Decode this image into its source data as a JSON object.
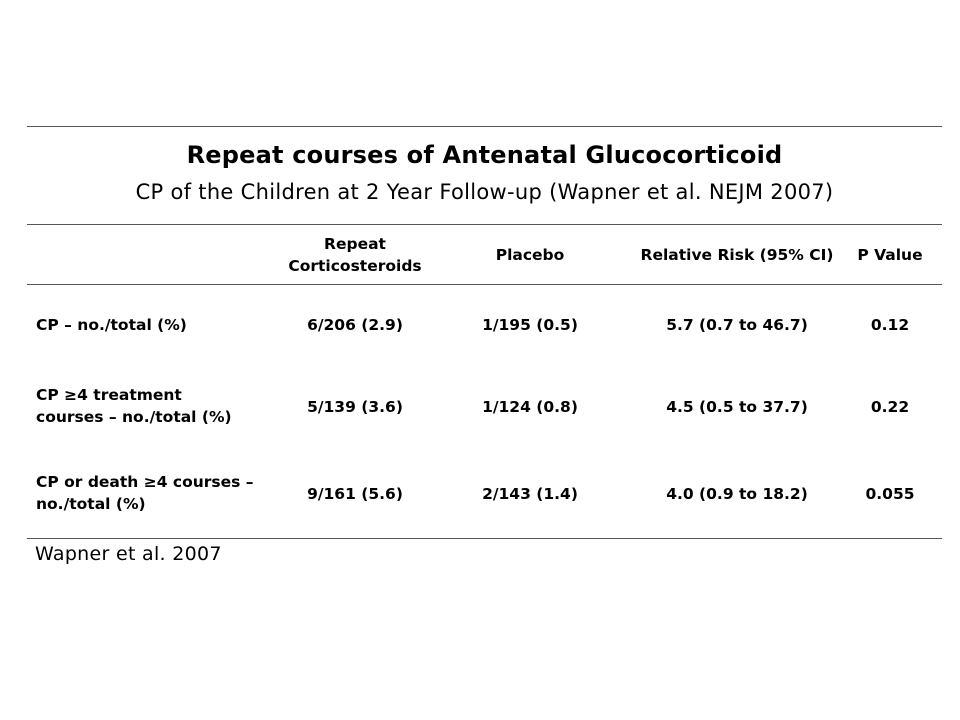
{
  "slide": {
    "title": "Repeat courses of Antenatal Glucocorticoid",
    "subtitle": "CP of the Children at 2 Year Follow-up (Wapner et al. NEJM 2007)",
    "source": "Wapner et al. 2007"
  },
  "table": {
    "headers": [
      "",
      "Repeat Corticosteroids",
      "Placebo",
      "Relative Risk (95% CI)",
      "P Value"
    ],
    "rows": [
      {
        "label": "CP – no./total (%)",
        "repeat": "6/206 (2.9)",
        "placebo": "1/195 (0.5)",
        "rr": "5.7 (0.7 to 46.7)",
        "p": "0.12"
      },
      {
        "label": "CP ≥4 treatment courses – no./total (%)",
        "repeat": "5/139 (3.6)",
        "placebo": "1/124 (0.8)",
        "rr": "4.5 (0.5 to 37.7)",
        "p": "0.22"
      },
      {
        "label": "CP or death ≥4 courses – no./total (%)",
        "repeat": "9/161 (5.6)",
        "placebo": "2/143 (1.4)",
        "rr": "4.0 (0.9 to 18.2)",
        "p": "0.055"
      }
    ]
  }
}
